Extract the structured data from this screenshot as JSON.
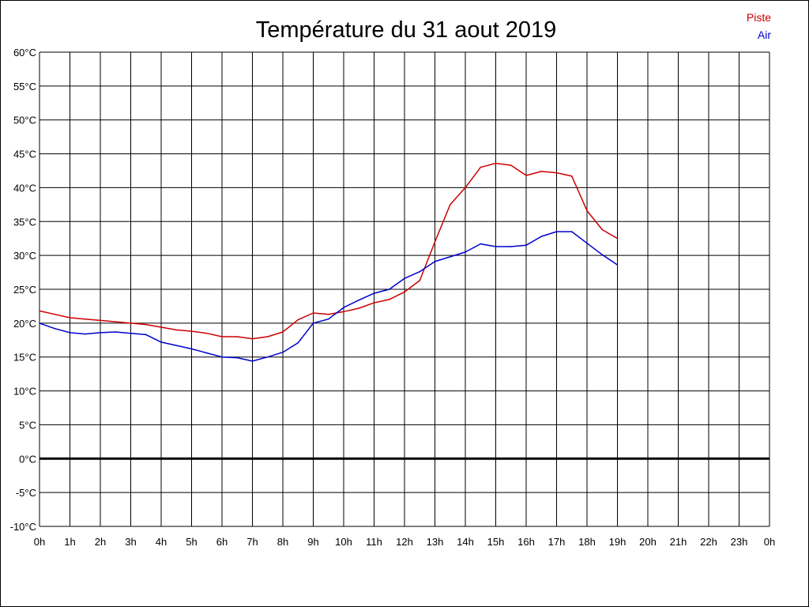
{
  "chart_data": {
    "type": "line",
    "title": "Température du 31 aout 2019",
    "xlabel": "",
    "ylabel": "",
    "x_tick_labels": [
      "0h",
      "1h",
      "2h",
      "3h",
      "4h",
      "5h",
      "6h",
      "7h",
      "8h",
      "9h",
      "10h",
      "11h",
      "12h",
      "13h",
      "14h",
      "15h",
      "16h",
      "17h",
      "18h",
      "19h",
      "20h",
      "21h",
      "22h",
      "23h",
      "0h"
    ],
    "y_tick_labels": [
      "60°C",
      "55°C",
      "50°C",
      "45°C",
      "40°C",
      "35°C",
      "30°C",
      "25°C",
      "20°C",
      "15°C",
      "10°C",
      "5°C",
      "0°C",
      "-5°C",
      "-10°C"
    ],
    "xlim": [
      0,
      24
    ],
    "ylim": [
      -10,
      60
    ],
    "grid": true,
    "zero_line": true,
    "legend_position": "top-right",
    "series": [
      {
        "name": "Piste",
        "color": "#cc0000",
        "x": [
          0,
          0.5,
          1,
          1.5,
          2,
          2.5,
          3,
          3.5,
          4,
          4.5,
          5,
          5.5,
          6,
          6.5,
          7,
          7.5,
          8,
          8.5,
          9,
          9.5,
          10,
          10.5,
          11,
          11.5,
          12,
          12.5,
          13,
          13.5,
          14,
          14.5,
          15,
          15.5,
          16,
          16.5,
          17,
          17.5,
          18,
          18.5,
          19
        ],
        "y": [
          21.8,
          21.3,
          20.8,
          20.6,
          20.4,
          20.2,
          20.0,
          19.8,
          19.4,
          19.0,
          18.8,
          18.5,
          18.0,
          18.0,
          17.7,
          18.0,
          18.7,
          20.5,
          21.5,
          21.3,
          21.7,
          22.2,
          23.0,
          23.5,
          24.6,
          26.3,
          32.0,
          37.5,
          40.0,
          43.0,
          43.6,
          43.3,
          41.8,
          42.4,
          42.2,
          41.7,
          36.6,
          33.8,
          32.5
        ]
      },
      {
        "name": "Air",
        "color": "#0000cc",
        "x": [
          0,
          0.5,
          1,
          1.5,
          2,
          2.5,
          3,
          3.5,
          4,
          4.5,
          5,
          5.5,
          6,
          6.5,
          7,
          7.5,
          8,
          8.5,
          9,
          9.5,
          10,
          10.5,
          11,
          11.5,
          12,
          12.5,
          13,
          13.5,
          14,
          14.5,
          15,
          15.5,
          16,
          16.5,
          17,
          17.5,
          18,
          18.5,
          19
        ],
        "y": [
          20.0,
          19.2,
          18.6,
          18.4,
          18.6,
          18.7,
          18.5,
          18.3,
          17.2,
          16.7,
          16.2,
          15.6,
          15.0,
          14.9,
          14.4,
          15.0,
          15.7,
          17.1,
          20.0,
          20.6,
          22.3,
          23.4,
          24.4,
          25.0,
          26.6,
          27.6,
          29.1,
          29.8,
          30.5,
          31.7,
          31.3,
          31.3,
          31.5,
          32.8,
          33.5,
          33.5,
          31.8,
          30.1,
          28.6
        ]
      }
    ]
  }
}
